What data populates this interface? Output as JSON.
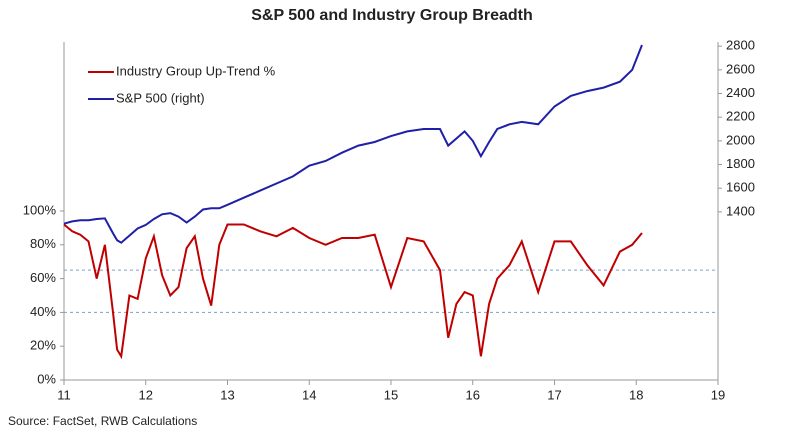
{
  "chart_data": {
    "type": "line",
    "title": "S&P 500 and Industry Group Breadth",
    "source": "Source: FactSet, RWB Calculations",
    "x": [
      11.0,
      11.1,
      11.2,
      11.3,
      11.4,
      11.5,
      11.6,
      11.65,
      11.7,
      11.8,
      11.9,
      12.0,
      12.1,
      12.2,
      12.3,
      12.4,
      12.5,
      12.6,
      12.7,
      12.8,
      12.9,
      13.0,
      13.2,
      13.4,
      13.6,
      13.8,
      14.0,
      14.2,
      14.4,
      14.6,
      14.8,
      15.0,
      15.2,
      15.4,
      15.6,
      15.7,
      15.8,
      15.9,
      16.0,
      16.1,
      16.2,
      16.3,
      16.45,
      16.6,
      16.8,
      17.0,
      17.2,
      17.4,
      17.6,
      17.8,
      17.95,
      18.07
    ],
    "series": [
      {
        "name": "Industry Group Up-Trend %",
        "color": "#c00000",
        "axis": "y",
        "values": [
          92,
          88,
          86,
          82,
          60,
          80,
          40,
          18,
          14,
          50,
          48,
          72,
          85,
          62,
          50,
          55,
          78,
          85,
          60,
          44,
          80,
          92,
          92,
          88,
          85,
          90,
          84,
          80,
          84,
          84,
          86,
          55,
          84,
          82,
          65,
          25,
          45,
          52,
          50,
          14,
          45,
          60,
          68,
          82,
          52,
          82,
          82,
          68,
          56,
          76,
          80,
          87
        ]
      },
      {
        "name": "S&P 500 (right)",
        "color": "#1f1fa8",
        "axis": "y2",
        "values": [
          1300,
          1320,
          1330,
          1330,
          1340,
          1345,
          1220,
          1160,
          1140,
          1200,
          1260,
          1290,
          1340,
          1380,
          1390,
          1360,
          1310,
          1360,
          1420,
          1430,
          1430,
          1460,
          1520,
          1580,
          1640,
          1700,
          1790,
          1830,
          1900,
          1960,
          1990,
          2040,
          2080,
          2100,
          2100,
          1960,
          2020,
          2080,
          2000,
          1870,
          1990,
          2100,
          2140,
          2160,
          2140,
          2290,
          2380,
          2420,
          2450,
          2500,
          2600,
          2810
        ]
      }
    ],
    "xlim": [
      11,
      19
    ],
    "xticks": [
      11,
      12,
      13,
      14,
      15,
      16,
      17,
      18,
      19
    ],
    "ylim": [
      0,
      200
    ],
    "yticks": [
      {
        "value": 0,
        "label": "0%"
      },
      {
        "value": 20,
        "label": "20%"
      },
      {
        "value": 40,
        "label": "40%"
      },
      {
        "value": 60,
        "label": "60%"
      },
      {
        "value": 80,
        "label": "80%"
      },
      {
        "value": 100,
        "label": "100%"
      }
    ],
    "y2lim": [
      -20,
      2835
    ],
    "y2ticks": [
      1400,
      1600,
      1800,
      2000,
      2200,
      2400,
      2600,
      2800
    ],
    "reference_lines": [
      65,
      40
    ],
    "legend": "upper left"
  }
}
